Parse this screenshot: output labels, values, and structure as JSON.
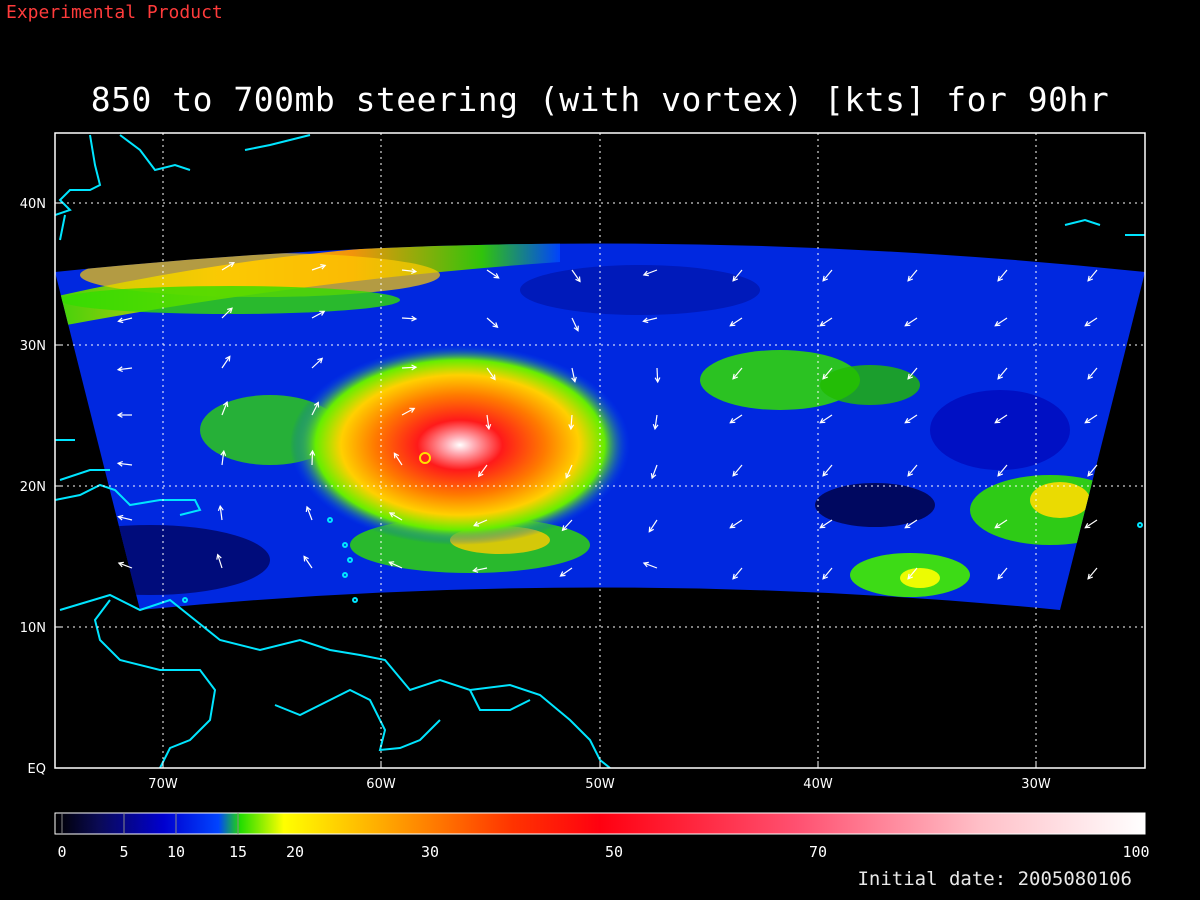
{
  "banner": "Experimental Product",
  "title": "850 to 700mb steering (with vortex) [kts] for 90hr",
  "initial_date": "Initial date: 2005080106",
  "map": {
    "lon_labels": [
      "70W",
      "60W",
      "50W",
      "40W",
      "30W"
    ],
    "lat_labels": [
      "40N",
      "30N",
      "20N",
      "10N",
      "EQ"
    ],
    "lon_range": [
      -75,
      -25
    ],
    "lat_range": [
      0,
      45
    ],
    "grid": "dotted",
    "coastline_color": "#00e5ff"
  },
  "colorbar": {
    "ticks": [
      "0",
      "5",
      "10",
      "15",
      "20",
      "30",
      "50",
      "70",
      "100"
    ],
    "colors": [
      "#000000",
      "#0a0a55",
      "#0000d0",
      "#0044ff",
      "#22dd00",
      "#ffff00",
      "#ff9900",
      "#ff2200",
      "#ff4060",
      "#ffb0b8",
      "#ffffff"
    ]
  },
  "storm": {
    "center_lon": -57.5,
    "center_lat": 22.5,
    "label": "vortex"
  }
}
